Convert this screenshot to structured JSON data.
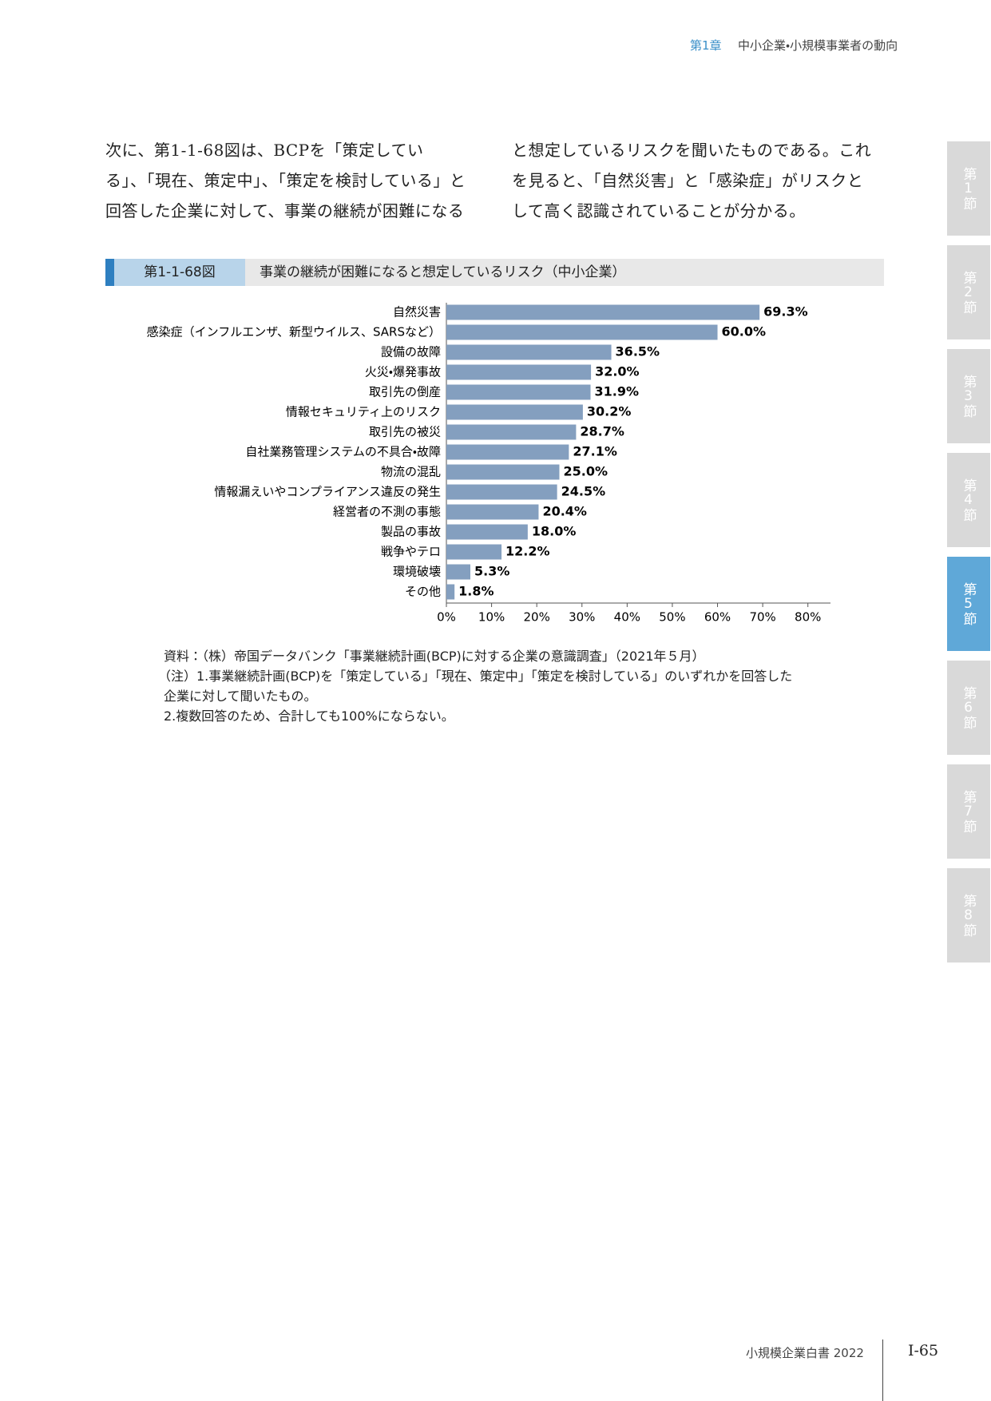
{
  "header": {
    "chapter": "第1章",
    "title": "中小企業・小規模事業者の動向"
  },
  "body": {
    "lines": [
      "次に、第1-1-68図は、BCPを「策定してい",
      "る」、「現在、策定中」、「策定を検討している」と",
      "回答した企業に対して、事業の継続が困難になる",
      "と想定しているリスクを聞いたものである。これ",
      "を見ると、「自然災害」と「感染症」がリスクと",
      "して高く認識されていることが分かる。"
    ]
  },
  "figure": {
    "label": "第1-1-68図",
    "title": "事業の継続が困難になると想定しているリスク（中小企業）"
  },
  "chart_data": {
    "type": "hbar",
    "color": "#849fbf",
    "categories": [
      "自然災害",
      "感染症（インフルエンザ、新型ウイルス、SARSなど）",
      "設備の故障",
      "火災・爆発事故",
      "取引先の倒産",
      "情報セキュリティ上のリスク",
      "取引先の被災",
      "自社業務管理システムの不具合・故障",
      "物流の混乱",
      "情報漏えいやコンプライアンス違反の発生",
      "経営者の不測の事態",
      "製品の事故",
      "戦争やテロ",
      "環境破壊",
      "その他"
    ],
    "values": [
      69.3,
      60.0,
      36.5,
      32.0,
      31.9,
      30.2,
      28.7,
      27.1,
      25.0,
      24.5,
      20.4,
      18.0,
      12.2,
      5.3,
      1.8
    ],
    "value_labels": [
      "69.3%",
      "60.0%",
      "36.5%",
      "32.0%",
      "31.9%",
      "30.2%",
      "28.7%",
      "27.1%",
      "25.0%",
      "24.5%",
      "20.4%",
      "18.0%",
      "12.2%",
      "5.3%",
      "1.8%"
    ],
    "xlim": [
      0,
      85
    ],
    "xticks": [
      {
        "value": 0,
        "label": "0%"
      },
      {
        "value": 10,
        "label": "10%"
      },
      {
        "value": 20,
        "label": "20%"
      },
      {
        "value": 30,
        "label": "30%"
      },
      {
        "value": 40,
        "label": "40%"
      },
      {
        "value": 50,
        "label": "50%"
      },
      {
        "value": 60,
        "label": "60%"
      },
      {
        "value": 70,
        "label": "70%"
      },
      {
        "value": 80,
        "label": "80%"
      }
    ]
  },
  "notes": [
    "資料：（株）帝国データバンク「事業継続計画(BCP)に対する企業の意識調査」（2021年５月）",
    "（注）1.事業継続計画(BCP)を「策定している」「現在、策定中」「策定を検討している」のいずれかを回答した",
    "企業に対して聞いたもの。",
    "2.複数回答のため、合計しても100%にならない。"
  ],
  "side_tabs": {
    "items": [
      "第1節",
      "第2節",
      "第3節",
      "第4節",
      "第5節",
      "第6節",
      "第7節",
      "第8節"
    ],
    "active": 4
  },
  "footer": {
    "book": "小規模企業白書 2022",
    "page": "I-65"
  }
}
